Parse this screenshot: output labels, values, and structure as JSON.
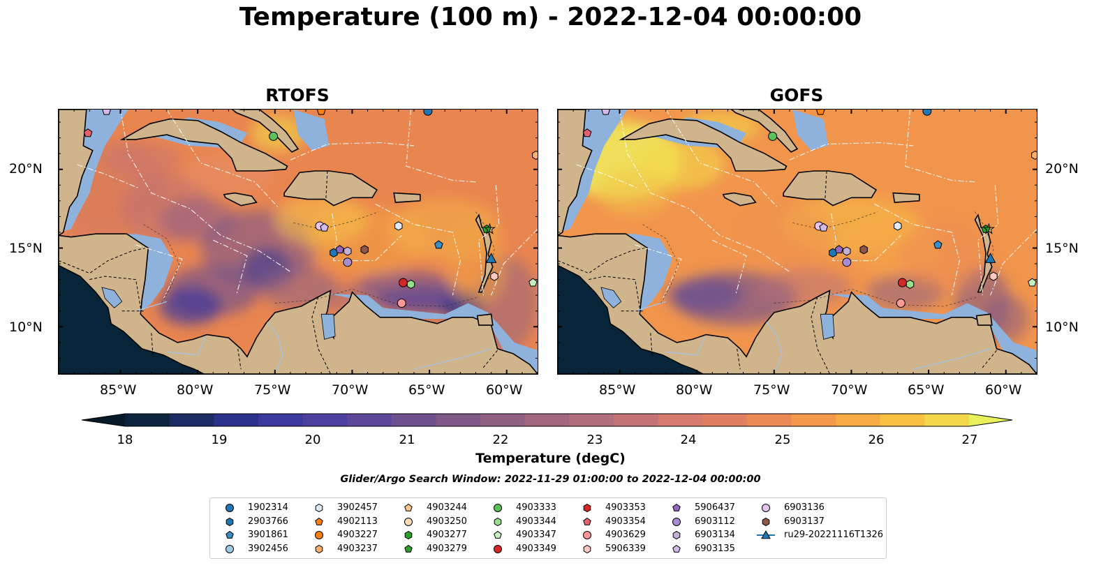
{
  "title": "Temperature (100 m) - 2022-12-04 00:00:00",
  "panels": [
    {
      "title": "RTOFS",
      "style": "rtofs"
    },
    {
      "title": "GOFS",
      "style": "gofs"
    }
  ],
  "x_ticks": [
    "85°W",
    "80°W",
    "75°W",
    "70°W",
    "65°W",
    "60°W"
  ],
  "y_ticks": [
    "20°N",
    "15°N",
    "10°N"
  ],
  "colorbar": {
    "title": "Temperature (degC)",
    "ticks": [
      "18",
      "19",
      "20",
      "21",
      "22",
      "23",
      "24",
      "25",
      "26",
      "27"
    ],
    "min": 18,
    "max": 27,
    "step": 0.5,
    "colors": [
      "#0c2340",
      "#1a2c63",
      "#2b328a",
      "#3b389e",
      "#4b3f9e",
      "#5d4798",
      "#6e508f",
      "#7f5888",
      "#906083",
      "#a2677f",
      "#b36e7b",
      "#c47477",
      "#d47a6f",
      "#e17f62",
      "#ec8a55",
      "#f4994b",
      "#f8ac44",
      "#f8c142",
      "#f2d84a",
      "#e8f15a"
    ]
  },
  "search_window": "Glider/Argo Search Window: 2022-11-29 01:00:00 to 2022-12-04 00:00:00",
  "legend": [
    {
      "label": "1902314",
      "marker": "circle",
      "color": "#1f77b4"
    },
    {
      "label": "2903766",
      "marker": "hexagon",
      "color": "#1f77b4"
    },
    {
      "label": "3901861",
      "marker": "pentagon",
      "color": "#3a8cc4"
    },
    {
      "label": "3902456",
      "marker": "circle",
      "color": "#9ecae1"
    },
    {
      "label": "3902457",
      "marker": "hexagon",
      "color": "#deebf7"
    },
    {
      "label": "4902113",
      "marker": "pentagon",
      "color": "#ff7f0e"
    },
    {
      "label": "4903227",
      "marker": "circle",
      "color": "#ff7f0e"
    },
    {
      "label": "4903237",
      "marker": "hexagon",
      "color": "#fdae6b"
    },
    {
      "label": "4903244",
      "marker": "pentagon",
      "color": "#fdc48f"
    },
    {
      "label": "4903250",
      "marker": "circle",
      "color": "#fdd9b5"
    },
    {
      "label": "4903277",
      "marker": "hexagon",
      "color": "#2ca02c"
    },
    {
      "label": "4903279",
      "marker": "pentagon",
      "color": "#2ca02c"
    },
    {
      "label": "4903333",
      "marker": "circle",
      "color": "#5cc15c"
    },
    {
      "label": "4903344",
      "marker": "hexagon",
      "color": "#98df8a"
    },
    {
      "label": "4903347",
      "marker": "pentagon",
      "color": "#c7f0c0"
    },
    {
      "label": "4903349",
      "marker": "circle",
      "color": "#d62728"
    },
    {
      "label": "4903353",
      "marker": "hexagon",
      "color": "#d62728"
    },
    {
      "label": "4903354",
      "marker": "pentagon",
      "color": "#e8606f"
    },
    {
      "label": "4903629",
      "marker": "circle",
      "color": "#ff9896"
    },
    {
      "label": "5906339",
      "marker": "hexagon",
      "color": "#fcc9c0"
    },
    {
      "label": "5906437",
      "marker": "pentagon",
      "color": "#9467bd"
    },
    {
      "label": "6903112",
      "marker": "circle",
      "color": "#a98bd4"
    },
    {
      "label": "6903134",
      "marker": "hexagon",
      "color": "#c5b0d5"
    },
    {
      "label": "6903135",
      "marker": "pentagon",
      "color": "#d3b8e8"
    },
    {
      "label": "6903136",
      "marker": "circle",
      "color": "#e6c3f0"
    },
    {
      "label": "6903137",
      "marker": "hexagon",
      "color": "#8c564b"
    },
    {
      "label": "ru29-20221116T1326",
      "marker": "glider-triangle",
      "color": "#1f77b4"
    }
  ]
}
